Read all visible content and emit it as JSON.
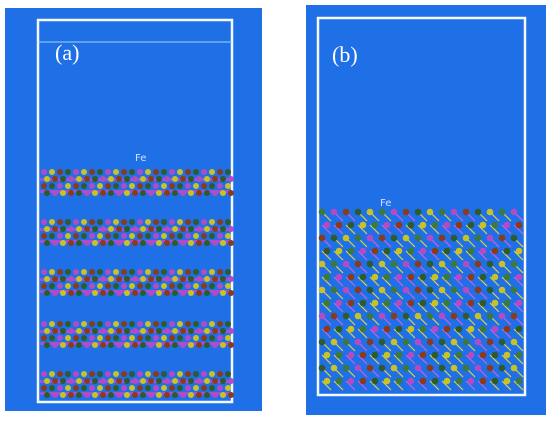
{
  "panels": [
    {
      "label": "(a)",
      "annotation": "Fe"
    },
    {
      "label": "(b)",
      "annotation": "Fe"
    }
  ]
}
